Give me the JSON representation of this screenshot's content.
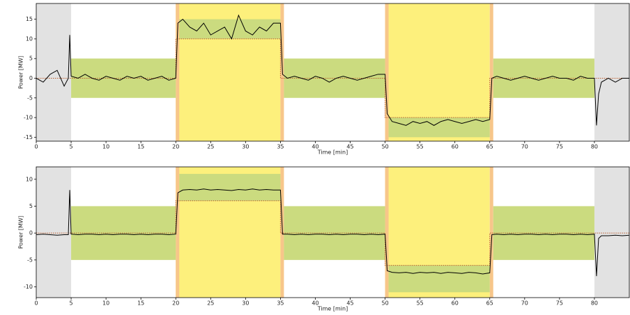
{
  "chart_data": [
    {
      "type": "line",
      "xlabel": "Time [min]",
      "ylabel": "Power [MW]",
      "xlim": [
        0,
        85
      ],
      "ylim": [
        -16,
        19
      ],
      "xticks": [
        0,
        5,
        10,
        15,
        20,
        25,
        30,
        35,
        40,
        45,
        50,
        55,
        60,
        65,
        70,
        75,
        80
      ],
      "yticks": [
        -15,
        -10,
        -5,
        0,
        5,
        10,
        15
      ],
      "regions": [
        {
          "x0": 0,
          "x1": 5,
          "y0": -16,
          "y1": 19,
          "color": "#e2e2e2"
        },
        {
          "x0": 80,
          "x1": 85,
          "y0": -16,
          "y1": 19,
          "color": "#e2e2e2"
        },
        {
          "x0": 20,
          "x1": 35,
          "y0": -16,
          "y1": 19,
          "color": "#fdf07c"
        },
        {
          "x0": 50,
          "x1": 65,
          "y0": -16,
          "y1": 19,
          "color": "#fdf07c"
        },
        {
          "x0": 20,
          "x1": 20.5,
          "y0": -16,
          "y1": 19,
          "color": "#f7c68a"
        },
        {
          "x0": 35,
          "x1": 35.5,
          "y0": -16,
          "y1": 19,
          "color": "#f7c68a"
        },
        {
          "x0": 50,
          "x1": 50.5,
          "y0": -16,
          "y1": 19,
          "color": "#f7c68a"
        },
        {
          "x0": 65,
          "x1": 65.5,
          "y0": -16,
          "y1": 19,
          "color": "#f7c68a"
        },
        {
          "x0": 5,
          "x1": 20,
          "y0": -5,
          "y1": 5,
          "color": "#cbdb7f"
        },
        {
          "x0": 20.5,
          "x1": 35,
          "y0": 10,
          "y1": 15,
          "color": "#cbdb7f"
        },
        {
          "x0": 35.5,
          "x1": 50,
          "y0": -5,
          "y1": 5,
          "color": "#cbdb7f"
        },
        {
          "x0": 50.5,
          "x1": 65,
          "y0": -15,
          "y1": -10,
          "color": "#cbdb7f"
        },
        {
          "x0": 65.5,
          "x1": 80,
          "y0": -5,
          "y1": 5,
          "color": "#cbdb7f"
        }
      ],
      "reference": {
        "color": "#b85a2a",
        "x": [
          0,
          20,
          20,
          35,
          35,
          50,
          50,
          65,
          65,
          85
        ],
        "values": [
          0,
          0,
          10,
          10,
          0,
          0,
          -10,
          -10,
          0,
          0
        ]
      },
      "x": [
        0,
        1,
        2,
        3,
        4,
        4.6,
        4.8,
        5,
        6,
        7,
        8,
        9,
        10,
        11,
        12,
        13,
        14,
        15,
        16,
        17,
        18,
        19,
        20,
        20.3,
        21,
        22,
        23,
        24,
        25,
        26,
        27,
        28,
        29,
        30,
        31,
        32,
        33,
        34,
        35,
        35.3,
        36,
        37,
        38,
        39,
        40,
        41,
        42,
        43,
        44,
        45,
        46,
        47,
        48,
        49,
        50,
        50.3,
        51,
        52,
        53,
        54,
        55,
        56,
        57,
        58,
        59,
        60,
        61,
        62,
        63,
        64,
        65,
        65.3,
        66,
        67,
        68,
        69,
        70,
        71,
        72,
        73,
        74,
        75,
        76,
        77,
        78,
        79,
        80,
        80.3,
        80.6,
        81,
        82,
        83,
        84,
        85
      ],
      "series": [
        {
          "color": "#000000",
          "values": [
            0,
            -1,
            1,
            2,
            -2,
            0,
            11,
            0.5,
            0,
            1,
            0,
            -0.5,
            0.5,
            0,
            -0.5,
            0.5,
            0,
            0.5,
            -0.5,
            0,
            0.5,
            -0.5,
            0,
            14,
            15,
            13,
            12,
            14,
            11,
            12,
            13,
            10,
            16,
            12,
            11,
            13,
            12,
            14,
            14,
            1,
            0,
            0.5,
            0,
            -0.5,
            0.5,
            0,
            -1,
            0,
            0.5,
            0,
            -0.5,
            0,
            0.5,
            1,
            1,
            -9,
            -11,
            -11.5,
            -12,
            -11,
            -11.5,
            -11,
            -12,
            -11,
            -10.5,
            -11,
            -11.5,
            -11,
            -10.5,
            -11,
            -10.5,
            0,
            0.5,
            0,
            -0.5,
            0,
            0.5,
            0,
            -0.5,
            0,
            0.5,
            0,
            0,
            -0.5,
            0.5,
            0,
            0,
            -12,
            -4,
            -1,
            0,
            -1,
            0,
            0
          ]
        }
      ]
    },
    {
      "type": "line",
      "xlabel": "Time [min]",
      "ylabel": "Power [MW]",
      "xlim": [
        0,
        85
      ],
      "ylim": [
        -12,
        12.3
      ],
      "xticks": [
        0,
        5,
        10,
        15,
        20,
        25,
        30,
        35,
        40,
        45,
        50,
        55,
        60,
        65,
        70,
        75,
        80
      ],
      "yticks": [
        -10,
        -5,
        0,
        5,
        10
      ],
      "regions": [
        {
          "x0": 0,
          "x1": 5,
          "y0": -12,
          "y1": 12.3,
          "color": "#e2e2e2"
        },
        {
          "x0": 80,
          "x1": 85,
          "y0": -12,
          "y1": 12.3,
          "color": "#e2e2e2"
        },
        {
          "x0": 20,
          "x1": 35,
          "y0": -12,
          "y1": 12.3,
          "color": "#fdf07c"
        },
        {
          "x0": 50,
          "x1": 65,
          "y0": -12,
          "y1": 12.3,
          "color": "#fdf07c"
        },
        {
          "x0": 20,
          "x1": 20.5,
          "y0": -12,
          "y1": 12.3,
          "color": "#f7c68a"
        },
        {
          "x0": 35,
          "x1": 35.5,
          "y0": -12,
          "y1": 12.3,
          "color": "#f7c68a"
        },
        {
          "x0": 50,
          "x1": 50.5,
          "y0": -12,
          "y1": 12.3,
          "color": "#f7c68a"
        },
        {
          "x0": 65,
          "x1": 65.5,
          "y0": -12,
          "y1": 12.3,
          "color": "#f7c68a"
        },
        {
          "x0": 5,
          "x1": 20,
          "y0": -5,
          "y1": 5,
          "color": "#cbdb7f"
        },
        {
          "x0": 20.5,
          "x1": 35,
          "y0": 6,
          "y1": 11,
          "color": "#cbdb7f"
        },
        {
          "x0": 35.5,
          "x1": 50,
          "y0": -5,
          "y1": 5,
          "color": "#cbdb7f"
        },
        {
          "x0": 50.5,
          "x1": 65,
          "y0": -11,
          "y1": -6,
          "color": "#cbdb7f"
        },
        {
          "x0": 65.5,
          "x1": 80,
          "y0": -5,
          "y1": 5,
          "color": "#cbdb7f"
        }
      ],
      "reference": {
        "color": "#b85a2a",
        "x": [
          0,
          20,
          20,
          35,
          35,
          50,
          50,
          65,
          65,
          85
        ],
        "values": [
          0,
          0,
          6,
          6,
          0,
          0,
          -6,
          -6,
          0,
          0
        ]
      },
      "x": [
        0,
        1,
        2,
        3,
        4,
        4.6,
        4.8,
        5,
        6,
        7,
        8,
        9,
        10,
        11,
        12,
        13,
        14,
        15,
        16,
        17,
        18,
        19,
        20,
        20.3,
        21,
        22,
        23,
        24,
        25,
        26,
        27,
        28,
        29,
        30,
        31,
        32,
        33,
        34,
        35,
        35.3,
        36,
        37,
        38,
        39,
        40,
        41,
        42,
        43,
        44,
        45,
        46,
        47,
        48,
        49,
        50,
        50.3,
        51,
        52,
        53,
        54,
        55,
        56,
        57,
        58,
        59,
        60,
        61,
        62,
        63,
        64,
        65,
        65.3,
        66,
        67,
        68,
        69,
        70,
        71,
        72,
        73,
        74,
        75,
        76,
        77,
        78,
        79,
        80,
        80.3,
        80.6,
        81,
        82,
        83,
        84,
        85
      ],
      "series": [
        {
          "color": "#000000",
          "values": [
            -0.3,
            -0.2,
            -0.3,
            -0.4,
            -0.3,
            -0.3,
            8,
            -0.2,
            -0.3,
            -0.2,
            -0.2,
            -0.3,
            -0.2,
            -0.3,
            -0.2,
            -0.2,
            -0.3,
            -0.2,
            -0.3,
            -0.2,
            -0.2,
            -0.3,
            -0.2,
            7.5,
            8,
            8.1,
            8,
            8.2,
            8,
            8.1,
            8,
            7.9,
            8.1,
            8,
            8.2,
            8,
            8.1,
            8,
            8,
            -0.2,
            -0.2,
            -0.3,
            -0.2,
            -0.3,
            -0.2,
            -0.2,
            -0.3,
            -0.2,
            -0.3,
            -0.2,
            -0.2,
            -0.3,
            -0.2,
            -0.3,
            -0.2,
            -7,
            -7.3,
            -7.4,
            -7.3,
            -7.5,
            -7.3,
            -7.4,
            -7.3,
            -7.5,
            -7.3,
            -7.4,
            -7.5,
            -7.3,
            -7.4,
            -7.6,
            -7.4,
            -0.3,
            -0.2,
            -0.3,
            -0.2,
            -0.3,
            -0.2,
            -0.2,
            -0.3,
            -0.2,
            -0.3,
            -0.2,
            -0.2,
            -0.3,
            -0.2,
            -0.3,
            -0.2,
            -8,
            -1,
            -0.5,
            -0.5,
            -0.4,
            -0.5,
            -0.4
          ]
        }
      ]
    }
  ]
}
